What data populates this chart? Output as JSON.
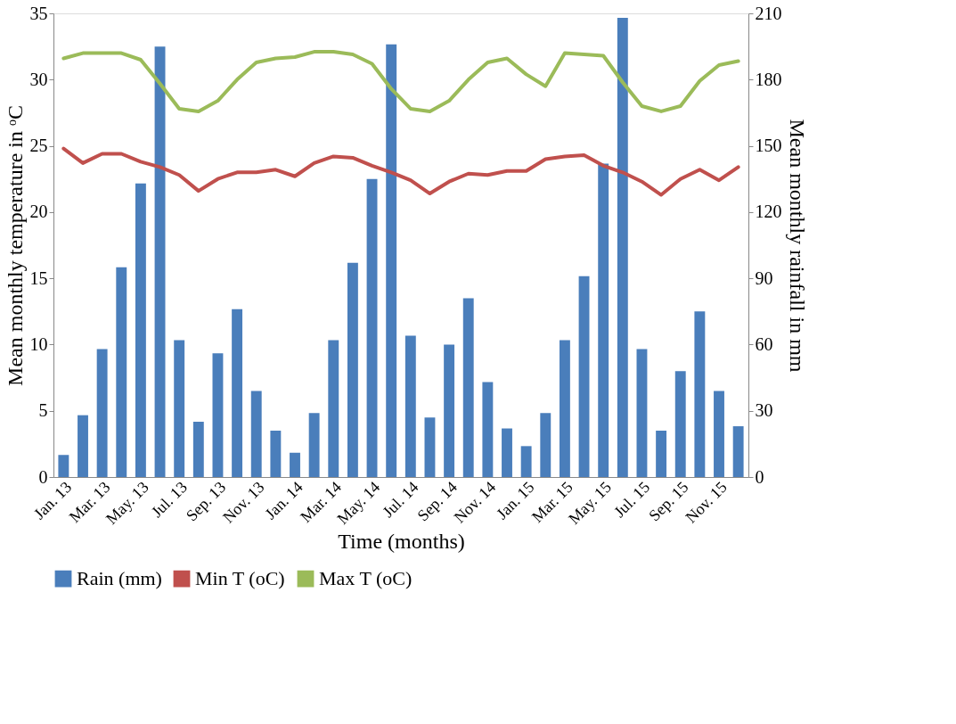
{
  "chart_data": {
    "type": "bar",
    "xlabel": "Time (months)",
    "ylabel": "Mean monthly temperature in ᵒC",
    "y2label": "Mean monthly rainfall in mm",
    "categories": [
      "Jan. 13",
      null,
      "Mar. 13",
      null,
      "May. 13",
      null,
      "Jul. 13",
      null,
      "Sep. 13",
      null,
      "Nov. 13",
      null,
      "Jan. 14",
      null,
      "Mar. 14",
      null,
      "May. 14",
      null,
      "Jul. 14",
      null,
      "Sep. 14",
      null,
      "Nov. 14",
      null,
      "Jan. 15",
      null,
      "Mar. 15",
      null,
      "May. 15",
      null,
      "Jul. 15",
      null,
      "Sep. 15",
      null,
      "Nov. 15",
      null
    ],
    "ylim": [
      0,
      35
    ],
    "yticks": [
      0,
      5,
      10,
      15,
      20,
      25,
      30,
      35
    ],
    "y2lim": [
      0,
      210
    ],
    "y2ticks": [
      0,
      30,
      60,
      90,
      120,
      150,
      180,
      210
    ],
    "legend": "bottom",
    "grid": false,
    "series": [
      {
        "name": "Rain (mm)",
        "axis": "y2",
        "color": "#4a7ebb",
        "values": [
          10,
          28,
          58,
          95,
          133,
          195,
          62,
          25,
          56,
          76,
          39,
          21,
          11,
          29,
          62,
          97,
          135,
          196,
          64,
          27,
          60,
          81,
          43,
          22,
          14,
          29,
          62,
          91,
          142,
          208,
          58,
          21,
          48,
          75,
          39,
          23
        ]
      },
      {
        "name": "Min T (oC)",
        "type": "line",
        "color": "#c0504d",
        "values": [
          24.8,
          23.7,
          24.4,
          24.4,
          23.8,
          23.4,
          22.8,
          21.6,
          22.5,
          23.0,
          23.0,
          23.2,
          22.7,
          23.7,
          24.2,
          24.1,
          23.5,
          23.0,
          22.4,
          21.4,
          22.3,
          22.9,
          22.8,
          23.1,
          23.1,
          24.0,
          24.2,
          24.3,
          23.5,
          23.0,
          22.3,
          21.3,
          22.5,
          23.2,
          22.4,
          23.4
        ]
      },
      {
        "name": "Max T (oC)",
        "type": "line",
        "color": "#9bbb59",
        "values": [
          31.6,
          32.0,
          32.0,
          32.0,
          31.5,
          29.7,
          27.8,
          27.6,
          28.4,
          30.0,
          31.3,
          31.6,
          31.7,
          32.1,
          32.1,
          31.9,
          31.2,
          29.3,
          27.8,
          27.6,
          28.4,
          30.0,
          31.3,
          31.6,
          30.4,
          29.5,
          32.0,
          31.9,
          31.8,
          29.8,
          28.0,
          27.6,
          28.0,
          29.9,
          31.1,
          31.4
        ]
      }
    ]
  }
}
